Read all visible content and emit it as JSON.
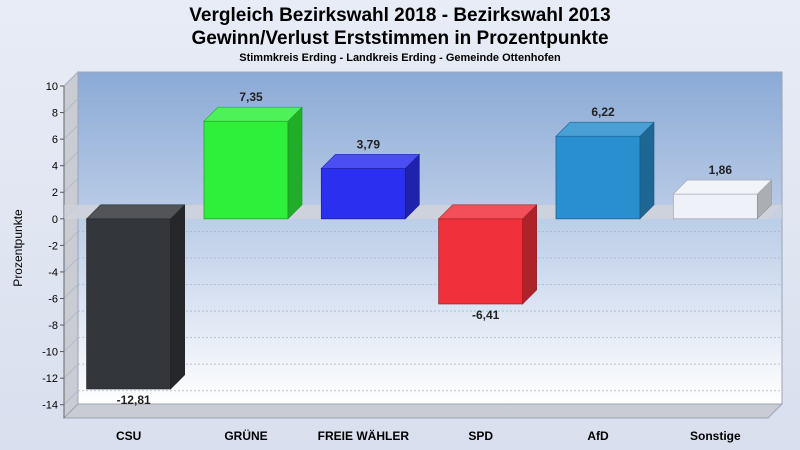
{
  "chart_data": {
    "type": "bar",
    "title": "Vergleich Bezirkswahl 2018 - Bezirkswahl 2013",
    "subtitle": "Gewinn/Verlust Erststimmen in Prozentpunkte",
    "subtitle2": "Stimmkreis Erding - Landkreis Erding - Gemeinde Ottenhofen",
    "ylabel": "Prozentpunkte",
    "ylim": [
      -15,
      10
    ],
    "yticks": [
      10,
      8,
      6,
      4,
      2,
      0,
      -2,
      -4,
      -6,
      -8,
      -10,
      -12,
      -14
    ],
    "categories": [
      "CSU",
      "GRÜNE",
      "FREIE WÄHLER",
      "SPD",
      "AfD",
      "Sonstige"
    ],
    "values": [
      -12.81,
      7.35,
      3.79,
      -6.41,
      6.22,
      1.86
    ],
    "value_labels": [
      "-12,81",
      "7,35",
      "3,79",
      "-6,41",
      "6,22",
      "1,86"
    ],
    "colors": [
      "#33363b",
      "#2ef03a",
      "#2b2ff0",
      "#f0303a",
      "#2a8fce",
      "#eef2f8"
    ],
    "grid": true,
    "three_d": true
  }
}
